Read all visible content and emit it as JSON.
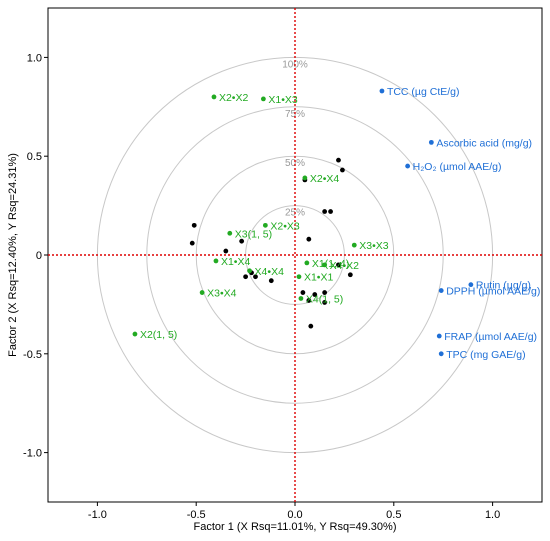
{
  "chart_data": {
    "type": "scatter",
    "xlabel": "Factor 1 (X Rsq=11.01%, Y Rsq=49.30%)",
    "ylabel": "Factor 2 (X Rsq=12.40%, Y Rsq=24.31%)",
    "xlim": [
      -1.25,
      1.25
    ],
    "ylim": [
      -1.25,
      1.25
    ],
    "x_ticks": [
      "-1.0",
      "-0.5",
      "0.0",
      "0.5",
      "1.0"
    ],
    "y_ticks": [
      "1.0",
      "0.5",
      "0",
      "-0.5",
      "-1.0"
    ],
    "circles": [
      {
        "r": 0.25,
        "label": "25%"
      },
      {
        "r": 0.5,
        "label": "50%"
      },
      {
        "r": 0.75,
        "label": "75%"
      },
      {
        "r": 1.0,
        "label": "100%"
      }
    ],
    "colors": {
      "x_loadings": "#22aa22",
      "y_loadings": "#1f6fd6",
      "scores": "#000000",
      "reference_lines": "#dd0000",
      "circles": "#c8c8c8"
    },
    "x_loadings": [
      {
        "label": "X2•X2",
        "x": -0.41,
        "y": 0.8
      },
      {
        "label": "X1•X3",
        "x": -0.16,
        "y": 0.79
      },
      {
        "label": "X2•X4",
        "x": 0.05,
        "y": 0.39
      },
      {
        "label": "X3•X3",
        "x": 0.3,
        "y": 0.05
      },
      {
        "label": "X2•X3",
        "x": -0.15,
        "y": 0.15
      },
      {
        "label": "X3(1, 5)",
        "x": -0.33,
        "y": 0.11
      },
      {
        "label": "X1•X4",
        "x": -0.4,
        "y": -0.03
      },
      {
        "label": "X1(1, 4)",
        "x": 0.06,
        "y": -0.04
      },
      {
        "label": "X4•X4",
        "x": -0.23,
        "y": -0.08
      },
      {
        "label": "X1•X1",
        "x": 0.02,
        "y": -0.11
      },
      {
        "label": "X4•X2",
        "x": 0.15,
        "y": -0.05
      },
      {
        "label": "X3•X4",
        "x": -0.47,
        "y": -0.19
      },
      {
        "label": "X4(1, 5)",
        "x": 0.03,
        "y": -0.22
      },
      {
        "label": "X2(1, 5)",
        "x": -0.81,
        "y": -0.4
      }
    ],
    "y_loadings": [
      {
        "label": "TCC (µg CtE/g)",
        "x": 0.44,
        "y": 0.83
      },
      {
        "label": "Ascorbic acid (mg/g)",
        "x": 0.69,
        "y": 0.57
      },
      {
        "label": "H₂O₂ (µmol AAE/g)",
        "x": 0.57,
        "y": 0.45
      },
      {
        "label": "Rutin (µg/g)",
        "x": 0.89,
        "y": -0.15
      },
      {
        "label": "DPPH (µmol AAE/g)",
        "x": 0.74,
        "y": -0.18
      },
      {
        "label": "FRAP (µmol AAE/g)",
        "x": 0.73,
        "y": -0.41
      },
      {
        "label": "TPC (mg GAE/g)",
        "x": 0.74,
        "y": -0.5
      }
    ],
    "scores": [
      {
        "x": 0.22,
        "y": 0.48
      },
      {
        "x": 0.24,
        "y": 0.43
      },
      {
        "x": 0.05,
        "y": 0.38
      },
      {
        "x": 0.18,
        "y": 0.22
      },
      {
        "x": 0.15,
        "y": 0.22
      },
      {
        "x": -0.51,
        "y": 0.15
      },
      {
        "x": -0.52,
        "y": 0.06
      },
      {
        "x": -0.35,
        "y": 0.02
      },
      {
        "x": 0.07,
        "y": 0.08
      },
      {
        "x": -0.22,
        "y": -0.09
      },
      {
        "x": -0.25,
        "y": -0.11
      },
      {
        "x": -0.2,
        "y": -0.11
      },
      {
        "x": -0.12,
        "y": -0.13
      },
      {
        "x": 0.22,
        "y": -0.05
      },
      {
        "x": 0.28,
        "y": -0.1
      },
      {
        "x": 0.04,
        "y": -0.19
      },
      {
        "x": 0.1,
        "y": -0.2
      },
      {
        "x": 0.15,
        "y": -0.19
      },
      {
        "x": 0.07,
        "y": -0.23
      },
      {
        "x": 0.15,
        "y": -0.24
      },
      {
        "x": 0.08,
        "y": -0.36
      },
      {
        "x": -0.27,
        "y": 0.07
      }
    ]
  }
}
